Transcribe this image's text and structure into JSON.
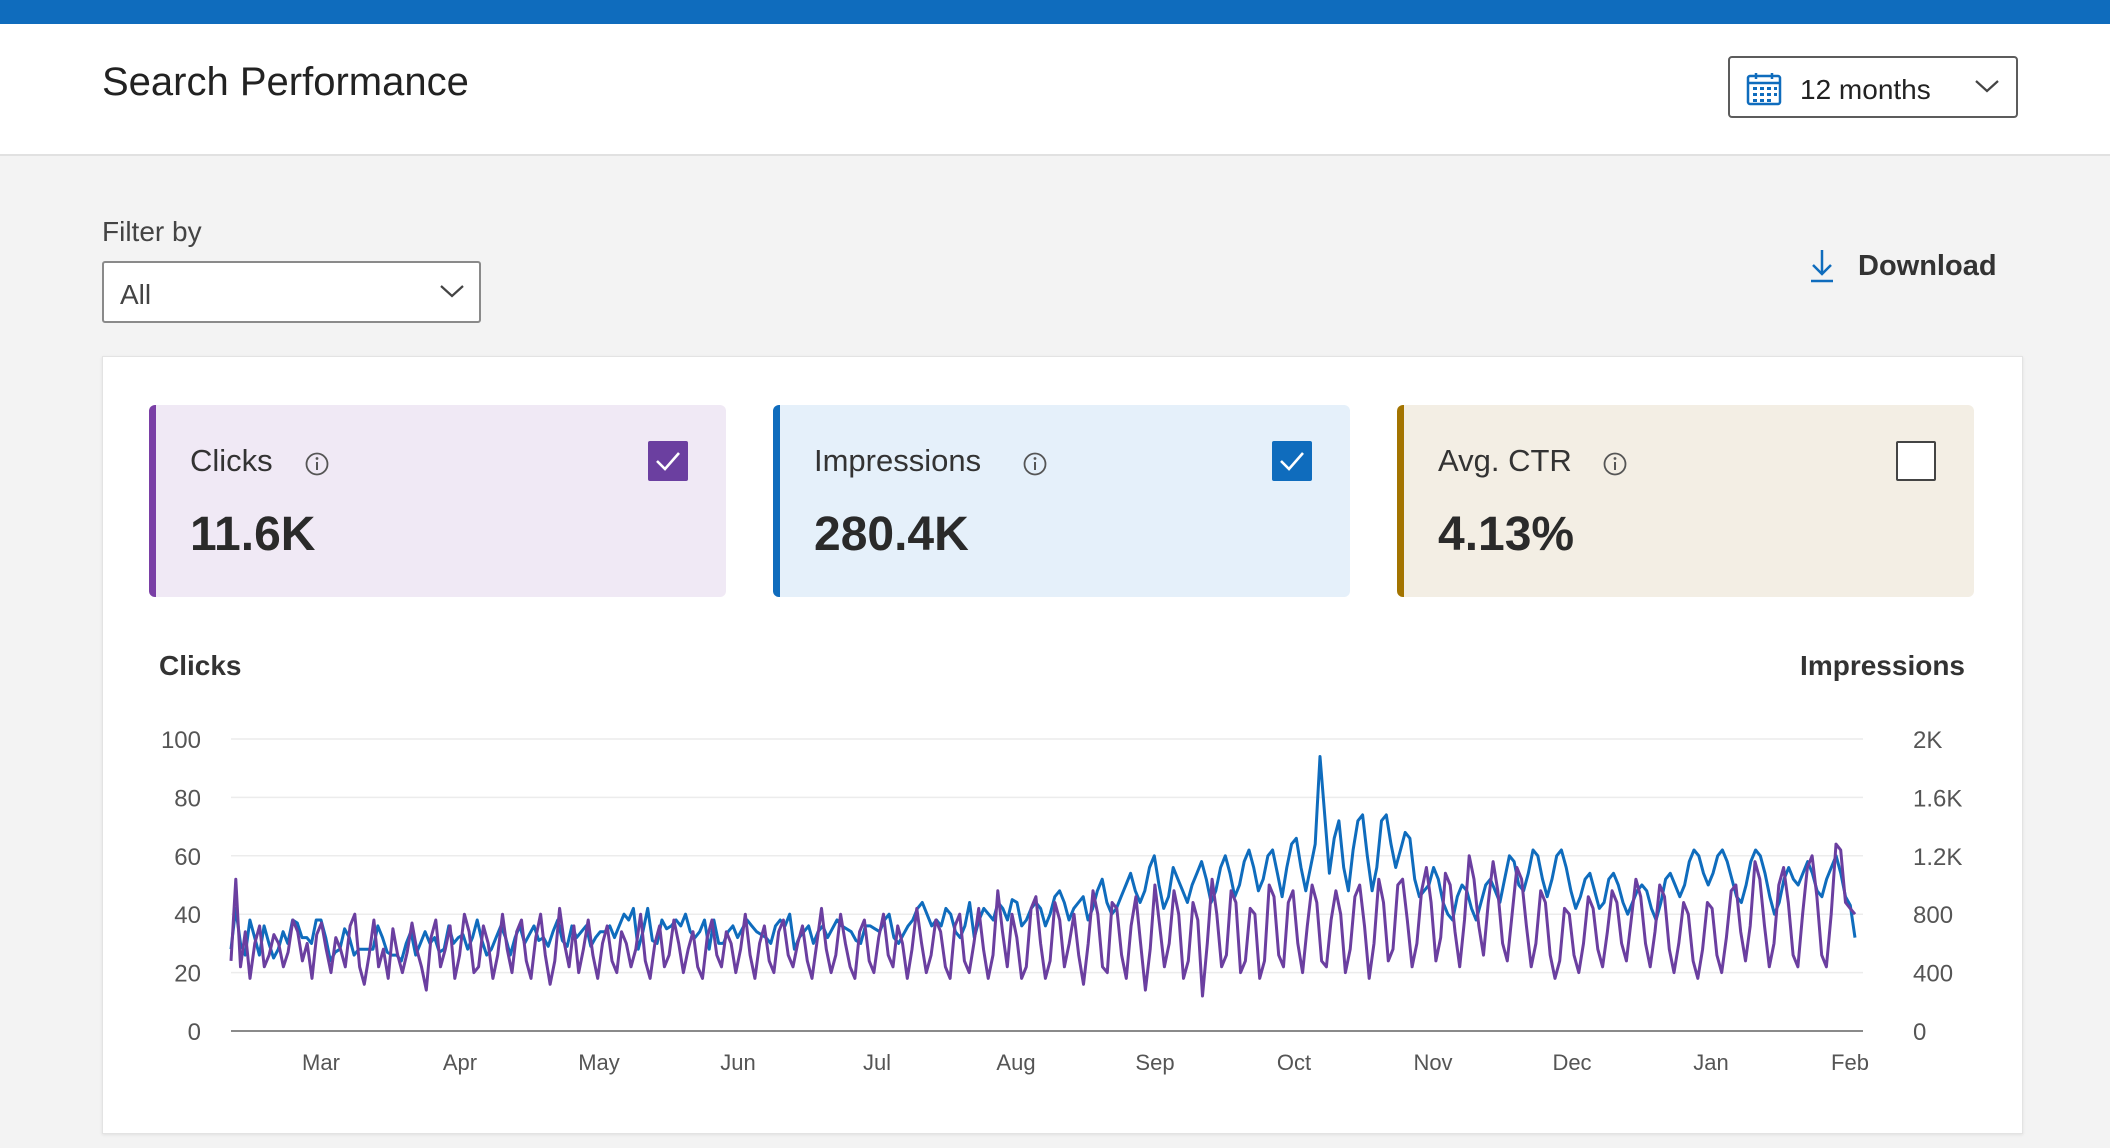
{
  "header": {
    "title": "Search Performance",
    "range_label": "12 months"
  },
  "filter": {
    "label": "Filter by",
    "value": "All"
  },
  "toolbar": {
    "download_label": "Download"
  },
  "metrics": [
    {
      "label": "Clicks",
      "value": "11.6K",
      "checked": true,
      "color": "#7a3fa6"
    },
    {
      "label": "Impressions",
      "value": "280.4K",
      "checked": true,
      "color": "#0f6cbd"
    },
    {
      "label": "Avg. CTR",
      "value": "4.13%",
      "checked": false,
      "color": "#a37400"
    }
  ],
  "chart_data": {
    "type": "line",
    "left_axis_title": "Clicks",
    "right_axis_title": "Impressions",
    "y_left": {
      "min": 0,
      "max": 100,
      "ticks": [
        "0",
        "20",
        "40",
        "60",
        "80",
        "100"
      ]
    },
    "y_right": {
      "min": 0,
      "max": 2000,
      "ticks": [
        "0",
        "400",
        "800",
        "1.2K",
        "1.6K",
        "2K"
      ]
    },
    "x_ticks": [
      "Mar",
      "Apr",
      "May",
      "Jun",
      "Jul",
      "Aug",
      "Sep",
      "Oct",
      "Nov",
      "Dec",
      "Jan",
      "Feb"
    ],
    "grid": true,
    "series": [
      {
        "name": "Impressions",
        "axis": "right",
        "color": "#0f6cbd",
        "values": [
          560,
          840,
          600,
          520,
          760,
          640,
          520,
          720,
          600,
          500,
          560,
          680,
          600,
          760,
          740,
          640,
          640,
          600,
          760,
          760,
          640,
          480,
          540,
          560,
          700,
          640,
          520,
          560,
          560,
          560,
          560,
          720,
          640,
          540,
          520,
          520,
          480,
          600,
          680,
          520,
          600,
          680,
          600,
          640,
          540,
          560,
          720,
          600,
          640,
          660,
          560,
          640,
          760,
          620,
          520,
          560,
          640,
          720,
          640,
          520,
          640,
          720,
          600,
          660,
          720,
          620,
          640,
          580,
          680,
          760,
          620,
          580,
          720,
          640,
          680,
          720,
          580,
          640,
          680,
          680,
          720,
          640,
          720,
          800,
          760,
          840,
          560,
          680,
          840,
          620,
          600,
          760,
          700,
          720,
          760,
          720,
          800,
          680,
          640,
          680,
          760,
          560,
          760,
          600,
          600,
          680,
          720,
          640,
          700,
          760,
          720,
          680,
          660,
          640,
          600,
          720,
          760,
          720,
          800,
          560,
          640,
          680,
          720,
          600,
          680,
          720,
          640,
          700,
          760,
          720,
          700,
          680,
          620,
          600,
          720,
          720,
          700,
          680,
          760,
          800,
          640,
          600,
          660,
          720,
          760,
          840,
          880,
          800,
          720,
          760,
          720,
          840,
          800,
          680,
          640,
          720,
          880,
          640,
          760,
          840,
          800,
          760,
          880,
          840,
          760,
          900,
          880,
          720,
          760,
          840,
          880,
          840,
          720,
          800,
          920,
          960,
          880,
          760,
          840,
          880,
          920,
          760,
          840,
          960,
          1040,
          880,
          800,
          840,
          920,
          1000,
          1080,
          960,
          880,
          960,
          1120,
          1200,
          1000,
          840,
          920,
          1120,
          1040,
          960,
          880,
          1000,
          1080,
          1160,
          1040,
          880,
          960,
          1120,
          1200,
          1080,
          920,
          1000,
          1160,
          1240,
          1120,
          960,
          1040,
          1200,
          1240,
          1080,
          920,
          1120,
          1280,
          1320,
          1120,
          960,
          1120,
          1280,
          1880,
          1480,
          1080,
          1320,
          1440,
          1120,
          960,
          1240,
          1440,
          1480,
          1200,
          960,
          1120,
          1440,
          1480,
          1280,
          1120,
          1240,
          1360,
          1320,
          1040,
          920,
          960,
          1000,
          1120,
          1040,
          880,
          800,
          760,
          920,
          1000,
          960,
          840,
          760,
          880,
          1000,
          1040,
          960,
          880,
          1040,
          1200,
          1160,
          1000,
          960,
          1080,
          1240,
          1200,
          1040,
          920,
          1040,
          1200,
          1240,
          1120,
          960,
          840,
          920,
          1040,
          1080,
          960,
          840,
          880,
          1040,
          1080,
          1000,
          880,
          800,
          880,
          960,
          1000,
          960,
          840,
          760,
          880,
          1040,
          1080,
          1000,
          920,
          1000,
          1160,
          1240,
          1200,
          1080,
          1000,
          1080,
          1200,
          1240,
          1160,
          1040,
          920,
          880,
          1000,
          1160,
          1240,
          1200,
          1080,
          920,
          800,
          880,
          1040,
          1120,
          1040,
          1000,
          1080,
          1160,
          1080,
          960,
          920,
          1040,
          1120,
          1200,
          1080,
          920,
          860,
          640
        ]
      },
      {
        "name": "Clicks",
        "axis": "left",
        "color": "#6b3fa0",
        "values": [
          24,
          52,
          22,
          34,
          18,
          30,
          36,
          22,
          26,
          33,
          30,
          22,
          27,
          38,
          34,
          24,
          30,
          18,
          33,
          37,
          28,
          20,
          32,
          28,
          22,
          36,
          40,
          22,
          16,
          26,
          38,
          22,
          28,
          18,
          35,
          26,
          20,
          27,
          37,
          28,
          22,
          14,
          32,
          38,
          22,
          28,
          36,
          18,
          26,
          40,
          34,
          20,
          22,
          36,
          30,
          18,
          26,
          40,
          28,
          20,
          34,
          38,
          24,
          18,
          32,
          40,
          26,
          16,
          24,
          42,
          30,
          22,
          36,
          20,
          28,
          38,
          26,
          18,
          30,
          36,
          24,
          20,
          34,
          30,
          22,
          28,
          40,
          24,
          18,
          30,
          36,
          22,
          26,
          38,
          30,
          20,
          28,
          34,
          22,
          18,
          32,
          38,
          26,
          22,
          34,
          30,
          20,
          28,
          40,
          26,
          18,
          30,
          36,
          24,
          20,
          34,
          38,
          26,
          22,
          30,
          36,
          24,
          18,
          30,
          42,
          28,
          20,
          26,
          40,
          30,
          22,
          18,
          34,
          38,
          24,
          20,
          32,
          40,
          26,
          22,
          36,
          30,
          18,
          28,
          42,
          30,
          20,
          26,
          38,
          34,
          22,
          18,
          36,
          40,
          24,
          20,
          30,
          42,
          28,
          18,
          26,
          48,
          34,
          22,
          40,
          32,
          18,
          22,
          42,
          46,
          30,
          18,
          24,
          44,
          38,
          22,
          30,
          40,
          26,
          16,
          30,
          48,
          40,
          22,
          20,
          44,
          42,
          26,
          18,
          36,
          46,
          30,
          14,
          28,
          50,
          36,
          22,
          30,
          48,
          40,
          18,
          24,
          44,
          38,
          12,
          30,
          52,
          40,
          22,
          26,
          48,
          44,
          20,
          24,
          42,
          40,
          18,
          24,
          50,
          46,
          26,
          22,
          44,
          48,
          30,
          20,
          36,
          50,
          44,
          24,
          22,
          38,
          48,
          40,
          20,
          28,
          46,
          50,
          36,
          18,
          30,
          52,
          44,
          24,
          28,
          50,
          52,
          38,
          22,
          30,
          48,
          56,
          44,
          24,
          32,
          54,
          50,
          34,
          22,
          38,
          60,
          52,
          36,
          26,
          44,
          58,
          48,
          30,
          24,
          40,
          56,
          52,
          36,
          22,
          30,
          48,
          44,
          26,
          18,
          24,
          42,
          40,
          26,
          20,
          30,
          46,
          42,
          28,
          22,
          34,
          48,
          44,
          30,
          24,
          38,
          52,
          46,
          30,
          22,
          34,
          50,
          46,
          28,
          20,
          30,
          44,
          40,
          24,
          18,
          28,
          44,
          42,
          26,
          20,
          32,
          48,
          50,
          34,
          24,
          36,
          58,
          52,
          36,
          22,
          30,
          50,
          56,
          44,
          26,
          22,
          40,
          56,
          60,
          46,
          26,
          22,
          40,
          64,
          62,
          44,
          42,
          40
        ]
      }
    ]
  }
}
